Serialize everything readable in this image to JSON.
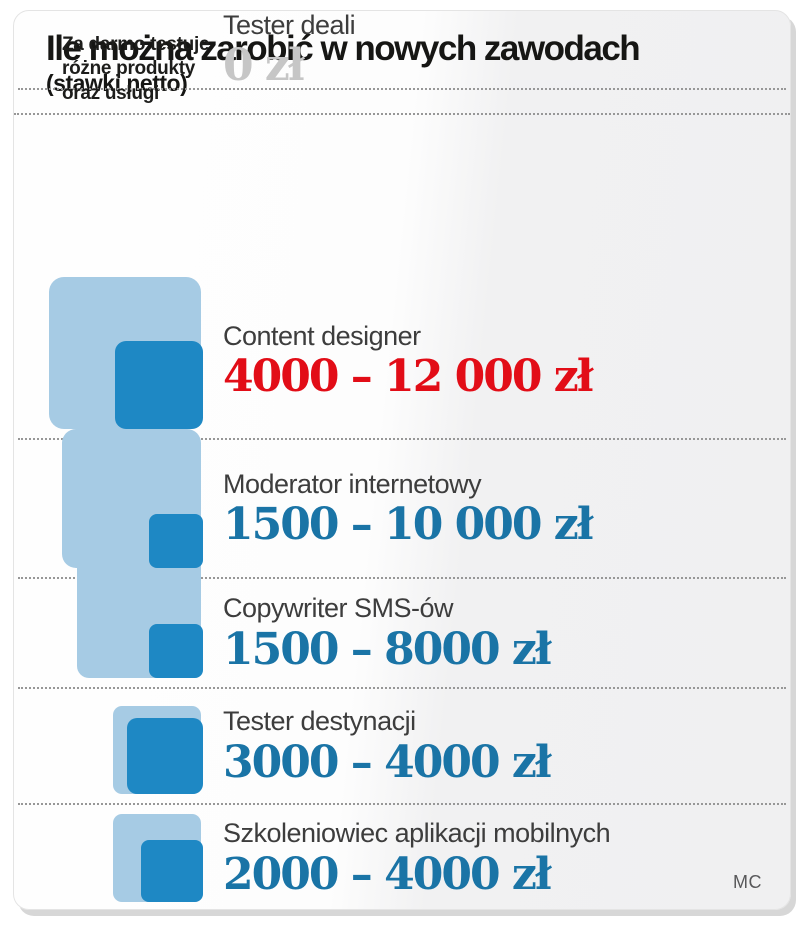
{
  "card": {
    "title": "Ile można zarobić w nowych zawodach",
    "subtitle": "(stawki netto)",
    "credit": "MC"
  },
  "colors": {
    "light_square": "#a6cbe4",
    "dark_square": "#1e88c4",
    "value_red": "#e20d17",
    "value_blue": "#1a74a6",
    "value_gray": "#c6c6c6",
    "job_label_gray": "#3d3d3d"
  },
  "chart_data": {
    "type": "table",
    "representation": "nested proportional squares (area scaled to salary, light = max, dark = min)",
    "title": "Ile można zarobić w nowych zawodach",
    "subtitle": "(stawki netto)",
    "currency": "zł",
    "max_scale_value": 12000,
    "rows": [
      {
        "job": "Content designer",
        "min": 4000,
        "max": 12000,
        "display": "4000 – 12 000 zł",
        "value_color": "#e20d17"
      },
      {
        "job": "Moderator internetowy",
        "min": 1500,
        "max": 10000,
        "display": "1500 – 10 000 zł",
        "value_color": "#1a74a6"
      },
      {
        "job": "Copywriter SMS-ów",
        "min": 1500,
        "max": 8000,
        "display": "1500 – 8000 zł",
        "value_color": "#1a74a6"
      },
      {
        "job": "Tester destynacji",
        "min": 3000,
        "max": 4000,
        "display": "3000 – 4000 zł",
        "value_color": "#1a74a6"
      },
      {
        "job": "Szkoleniowiec aplikacji mobilnych",
        "min": 2000,
        "max": 4000,
        "display": "2000 – 4000 zł",
        "value_color": "#1a74a6"
      },
      {
        "job": "Tester deali",
        "min": 0,
        "max": 0,
        "display": "0 zł",
        "value_color": "#c6c6c6",
        "note_lines": [
          "Za darmo testuje",
          "różne produkty",
          "oraz  usługi"
        ]
      }
    ]
  }
}
